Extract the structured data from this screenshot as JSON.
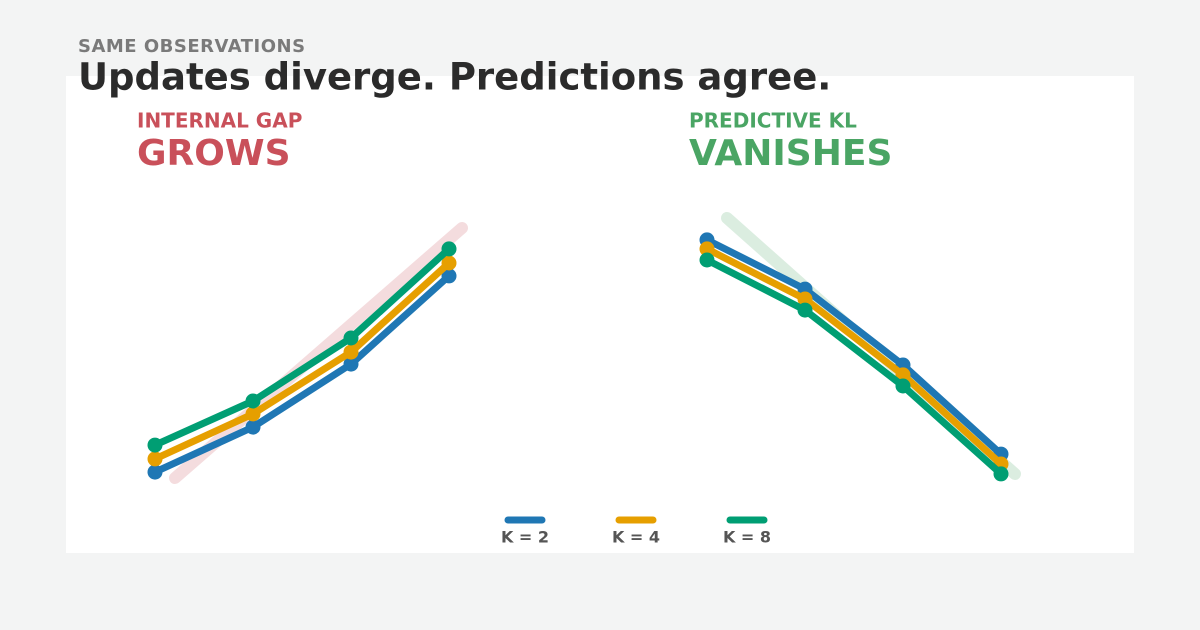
{
  "header": {
    "kicker": "SAME OBSERVATIONS",
    "title": "Updates diverge. Predictions agree."
  },
  "chart_data": [
    {
      "type": "line",
      "label": "INTERNAL GAP",
      "headline": "GROWS",
      "color": "#c9505a",
      "categories": [
        null,
        null,
        null,
        null
      ],
      "ylim": [
        0,
        100
      ],
      "series": [
        {
          "name": "K = 2",
          "color": "#1f77b4",
          "values": [
            9.3,
            24.3,
            45.3,
            74.7
          ]
        },
        {
          "name": "K = 4",
          "color": "#e69f00",
          "values": [
            13.7,
            28.7,
            49.3,
            79
          ]
        },
        {
          "name": "K = 8",
          "color": "#009e73",
          "values": [
            18.3,
            33,
            54,
            83.7
          ]
        }
      ]
    },
    {
      "type": "line",
      "label": "PREDICTIVE KL",
      "headline": "VANISHES",
      "color": "#4aa564",
      "categories": [
        null,
        null,
        null,
        null
      ],
      "ylim": [
        0,
        100
      ],
      "series": [
        {
          "name": "K = 2",
          "color": "#1f77b4",
          "values": [
            86.7,
            70.3,
            45,
            15.3
          ]
        },
        {
          "name": "K = 4",
          "color": "#e69f00",
          "values": [
            83.7,
            67,
            41.7,
            12
          ]
        },
        {
          "name": "K = 8",
          "color": "#009e73",
          "values": [
            80,
            63.3,
            38,
            8.7
          ]
        }
      ]
    }
  ]
}
